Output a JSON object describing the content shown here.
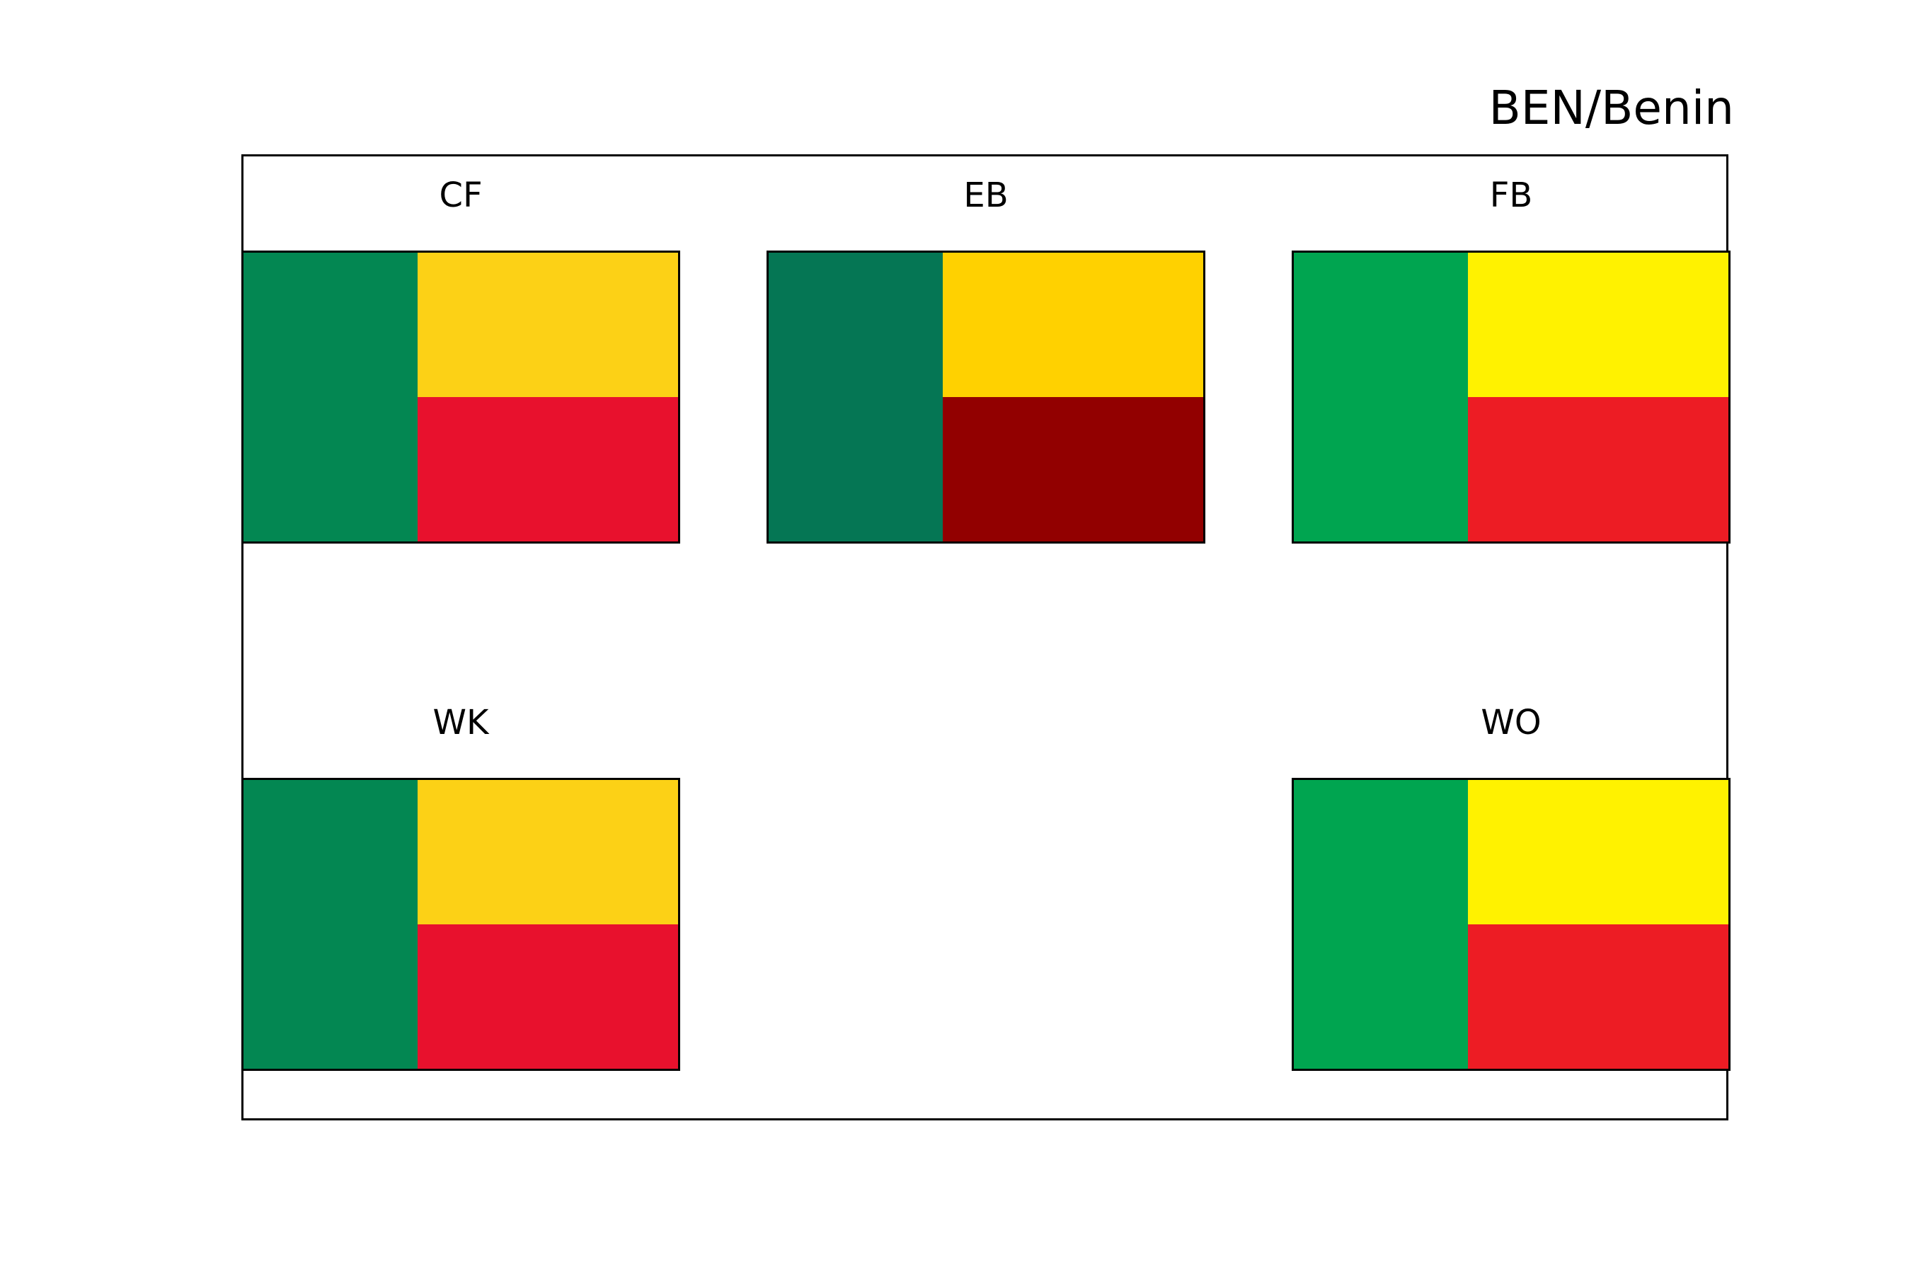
{
  "title": "BEN/Benin",
  "panels": [
    {
      "label": "CF",
      "colors": {
        "hoist": "#038752",
        "top": "#FCD116",
        "bottom": "#E8112D"
      }
    },
    {
      "label": "EB",
      "colors": {
        "hoist": "#057654",
        "top": "#FFD100",
        "bottom": "#920000"
      }
    },
    {
      "label": "FB",
      "colors": {
        "hoist": "#00A550",
        "top": "#FFF200",
        "bottom": "#ED1C24"
      }
    },
    {
      "label": "WK",
      "colors": {
        "hoist": "#038752",
        "top": "#FCD116",
        "bottom": "#E8112D"
      }
    },
    {
      "label": "WO",
      "colors": {
        "hoist": "#00A550",
        "top": "#FFF200",
        "bottom": "#ED1C24"
      }
    }
  ]
}
